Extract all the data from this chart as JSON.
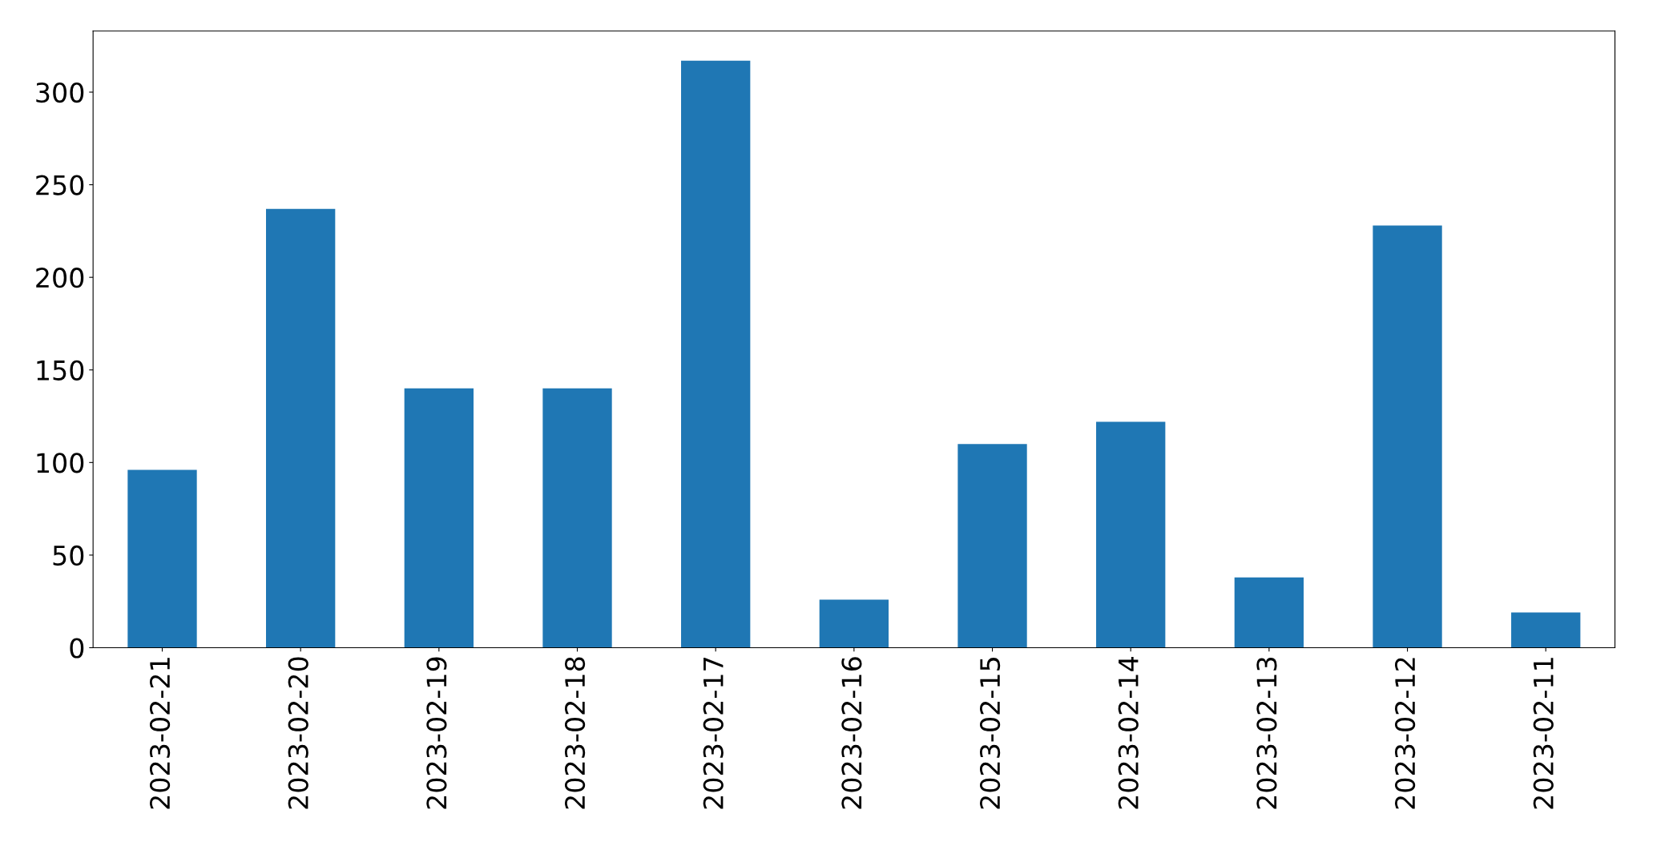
{
  "chart_data": {
    "type": "bar",
    "categories": [
      "2023-02-21",
      "2023-02-20",
      "2023-02-19",
      "2023-02-18",
      "2023-02-17",
      "2023-02-16",
      "2023-02-15",
      "2023-02-14",
      "2023-02-13",
      "2023-02-12",
      "2023-02-11"
    ],
    "values": [
      96,
      237,
      140,
      140,
      317,
      26,
      110,
      122,
      38,
      228,
      19
    ],
    "color": "#1f77b4",
    "ylim": [
      0,
      333
    ],
    "yticks": [
      0,
      50,
      100,
      150,
      200,
      250,
      300
    ],
    "grid": false,
    "legend": false
  }
}
